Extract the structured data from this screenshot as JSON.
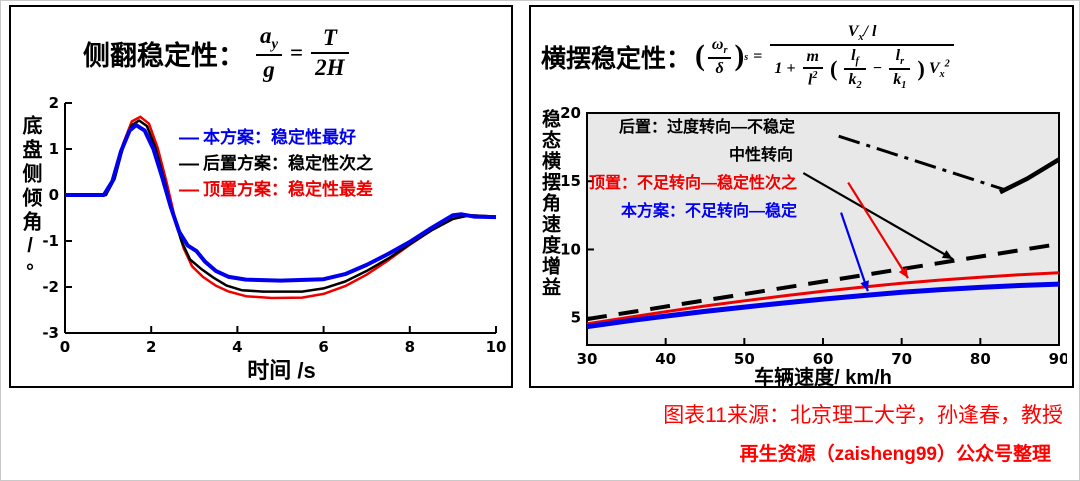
{
  "left_panel": {
    "title": "侧翻稳定性：",
    "formula": {
      "a": "a",
      "a_sub": "y",
      "g": "g",
      "eq": "=",
      "T": "T",
      "den": "2H"
    },
    "y_axis_label": "底盘侧倾角/°",
    "x_axis_label": "时间 /s",
    "legend": [
      {
        "marker": "—",
        "label": "本方案：稳定性最好",
        "color": "#0000ee"
      },
      {
        "marker": "—",
        "label": "后置方案：稳定性次之",
        "color": "#000000"
      },
      {
        "marker": "—",
        "label": "顶置方案：稳定性最差",
        "color": "#ee0000"
      }
    ]
  },
  "right_panel": {
    "title": "横摆稳定性：",
    "formula": {
      "lparen": "(",
      "rparen": ")",
      "omega": "ω",
      "omega_sub": "r",
      "delta": "δ",
      "s_sub": "s",
      "eq": "=",
      "V": "V",
      "V_sub": "x",
      "slash_l": "/ l",
      "one_plus": "1 +",
      "m": "m",
      "l": "l",
      "l_sup": "2",
      "lf": "l",
      "lf_sub": "f",
      "k2": "k",
      "k2_sub": "2",
      "minus": "−",
      "lr": "l",
      "lr_sub": "r",
      "k1": "k",
      "k1_sub": "1",
      "V2": "V",
      "V2_sub": "x",
      "V2_sup": "2"
    },
    "y_axis_label": "稳态横摆角速度增益",
    "x_axis_label": "车辆速度/ km/h",
    "annotations": [
      {
        "label": "后置：过度转向—不稳定",
        "color": "#000000"
      },
      {
        "label": "中性转向",
        "color": "#000000"
      },
      {
        "label": "顶置：不足转向—稳定性次之",
        "color": "#ee0000"
      },
      {
        "label": "本方案：不足转向—稳定",
        "color": "#0000ee"
      }
    ]
  },
  "caption": {
    "line1": "图表11来源：北京理工大学，孙逢春，教授",
    "line2": "再生资源（zaisheng99）公众号整理",
    "color": "#ff0000"
  },
  "chart_data": [
    {
      "type": "line",
      "title": "侧翻稳定性",
      "xlabel": "时间 /s",
      "ylabel": "底盘侧倾角/°",
      "xlim": [
        0,
        10
      ],
      "ylim": [
        -3,
        2
      ],
      "xticks": [
        0,
        2,
        4,
        6,
        8,
        10
      ],
      "yticks": [
        2,
        1,
        0,
        -1,
        -2,
        -3
      ],
      "grid": false,
      "legend_position": "inside-upper-right",
      "series": [
        {
          "name": "顶置方案：稳定性最差",
          "color": "#ee0000",
          "width": 2.5,
          "points": [
            [
              0,
              0
            ],
            [
              0.95,
              0
            ],
            [
              1.15,
              0.4
            ],
            [
              1.35,
              1.12
            ],
            [
              1.55,
              1.6
            ],
            [
              1.75,
              1.7
            ],
            [
              1.95,
              1.55
            ],
            [
              2.15,
              1.02
            ],
            [
              2.35,
              0.3
            ],
            [
              2.55,
              -0.5
            ],
            [
              2.75,
              -1.15
            ],
            [
              2.95,
              -1.55
            ],
            [
              3.2,
              -1.78
            ],
            [
              3.5,
              -1.97
            ],
            [
              3.8,
              -2.1
            ],
            [
              4.2,
              -2.2
            ],
            [
              4.8,
              -2.24
            ],
            [
              5.5,
              -2.23
            ],
            [
              6,
              -2.15
            ],
            [
              6.5,
              -1.98
            ],
            [
              7,
              -1.73
            ],
            [
              7.5,
              -1.42
            ],
            [
              8,
              -1.08
            ],
            [
              8.5,
              -0.77
            ],
            [
              9,
              -0.52
            ],
            [
              9.4,
              -0.44
            ],
            [
              10,
              -0.47
            ]
          ]
        },
        {
          "name": "后置方案：稳定性次之",
          "color": "#000000",
          "width": 2.5,
          "points": [
            [
              0,
              0
            ],
            [
              0.95,
              0
            ],
            [
              1.15,
              0.35
            ],
            [
              1.35,
              1.05
            ],
            [
              1.55,
              1.52
            ],
            [
              1.72,
              1.62
            ],
            [
              1.9,
              1.5
            ],
            [
              2.1,
              1.02
            ],
            [
              2.3,
              0.35
            ],
            [
              2.5,
              -0.4
            ],
            [
              2.7,
              -1.0
            ],
            [
              2.9,
              -1.4
            ],
            [
              3.15,
              -1.6
            ],
            [
              3.45,
              -1.8
            ],
            [
              3.75,
              -1.97
            ],
            [
              4.1,
              -2.07
            ],
            [
              4.6,
              -2.1
            ],
            [
              5.5,
              -2.1
            ],
            [
              6,
              -2.03
            ],
            [
              6.5,
              -1.88
            ],
            [
              7,
              -1.65
            ],
            [
              7.5,
              -1.38
            ],
            [
              8,
              -1.07
            ],
            [
              8.5,
              -0.77
            ],
            [
              9,
              -0.52
            ],
            [
              9.4,
              -0.44
            ],
            [
              10,
              -0.47
            ]
          ]
        },
        {
          "name": "本方案：稳定性最好",
          "color": "#0000ee",
          "width": 4,
          "points": [
            [
              0,
              0
            ],
            [
              0.9,
              0
            ],
            [
              1.1,
              0.3
            ],
            [
              1.3,
              0.95
            ],
            [
              1.5,
              1.4
            ],
            [
              1.65,
              1.52
            ],
            [
              1.85,
              1.4
            ],
            [
              2.05,
              1.0
            ],
            [
              2.25,
              0.4
            ],
            [
              2.45,
              -0.25
            ],
            [
              2.65,
              -0.8
            ],
            [
              2.85,
              -1.1
            ],
            [
              3.05,
              -1.22
            ],
            [
              3.25,
              -1.45
            ],
            [
              3.5,
              -1.65
            ],
            [
              3.8,
              -1.78
            ],
            [
              4.2,
              -1.84
            ],
            [
              5,
              -1.86
            ],
            [
              6,
              -1.83
            ],
            [
              6.5,
              -1.72
            ],
            [
              7,
              -1.52
            ],
            [
              7.5,
              -1.28
            ],
            [
              8,
              -1.02
            ],
            [
              8.5,
              -0.72
            ],
            [
              8.8,
              -0.55
            ],
            [
              9,
              -0.44
            ],
            [
              9.2,
              -0.42
            ],
            [
              9.5,
              -0.47
            ],
            [
              10,
              -0.48
            ]
          ]
        }
      ]
    },
    {
      "type": "line",
      "title": "横摆稳定性",
      "xlabel": "车辆速度/ km/h",
      "ylabel": "稳态横摆角速度增益",
      "xlim": [
        30,
        90
      ],
      "ylim": [
        3,
        20
      ],
      "xticks": [
        30,
        40,
        50,
        60,
        70,
        80,
        90
      ],
      "yticks": [
        5,
        10,
        15,
        20
      ],
      "plot_bg": "#e8e8e8",
      "grid": false,
      "series": [
        {
          "name": "后置：过度转向—不稳定（标注引线）",
          "color": "#000000",
          "width": 3,
          "dash": "22 7 4 7",
          "points": [
            [
              62,
              18.3
            ],
            [
              83,
              14.4
            ]
          ]
        },
        {
          "name": "后置：过度转向—不稳定",
          "color": "#000000",
          "width": 4.5,
          "points": [
            [
              82.5,
              14.2
            ],
            [
              86,
              15.2
            ],
            [
              90,
              16.6
            ]
          ]
        },
        {
          "name": "中性转向",
          "color": "#000000",
          "width": 4,
          "dash": "20 12",
          "points": [
            [
              30,
              4.9
            ],
            [
              90,
              10.4
            ]
          ]
        },
        {
          "name": "顶置：不足转向—稳定性次之",
          "color": "#ee0000",
          "width": 3,
          "points": [
            [
              30,
              4.55
            ],
            [
              35,
              5.0
            ],
            [
              40,
              5.44
            ],
            [
              45,
              5.86
            ],
            [
              50,
              6.24
            ],
            [
              55,
              6.6
            ],
            [
              60,
              6.94
            ],
            [
              65,
              7.24
            ],
            [
              70,
              7.52
            ],
            [
              75,
              7.76
            ],
            [
              80,
              7.97
            ],
            [
              85,
              8.15
            ],
            [
              90,
              8.3
            ]
          ]
        },
        {
          "name": "本方案：不足转向—稳定",
          "color": "#0000ee",
          "width": 5,
          "points": [
            [
              30,
              4.35
            ],
            [
              35,
              4.75
            ],
            [
              40,
              5.12
            ],
            [
              45,
              5.46
            ],
            [
              50,
              5.78
            ],
            [
              55,
              6.08
            ],
            [
              60,
              6.36
            ],
            [
              65,
              6.62
            ],
            [
              70,
              6.86
            ],
            [
              75,
              7.06
            ],
            [
              80,
              7.22
            ],
            [
              85,
              7.36
            ],
            [
              90,
              7.46
            ]
          ]
        }
      ],
      "arrows": [
        {
          "from": [
            57.5,
            15.6
          ],
          "to": [
            76.5,
            9.3
          ],
          "color": "#000000"
        },
        {
          "from": [
            63.2,
            14.9
          ],
          "to": [
            70.8,
            7.9
          ],
          "color": "#ee0000"
        },
        {
          "from": [
            62.3,
            12.7
          ],
          "to": [
            65.7,
            6.95
          ],
          "color": "#0000ee"
        }
      ]
    }
  ]
}
